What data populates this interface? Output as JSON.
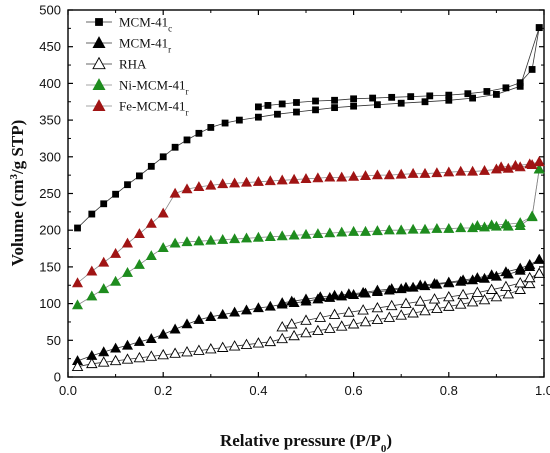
{
  "chart_data": {
    "type": "line",
    "xlabel": "Relative pressure (P/P",
    "xlabel_sub": "0",
    "xlabel_end": ")",
    "ylabel": "Volume (cm",
    "ylabel_sup": "3",
    "ylabel_end": "/g STP)",
    "xlim": [
      0.0,
      1.0
    ],
    "ylim": [
      0,
      500
    ],
    "xticks": [
      "0.0",
      "0.2",
      "0.4",
      "0.6",
      "0.8",
      "1.0"
    ],
    "yticks": [
      "0",
      "50",
      "100",
      "150",
      "200",
      "250",
      "300",
      "350",
      "400",
      "450",
      "500"
    ],
    "legend_position": "top-left",
    "series": [
      {
        "name": "MCM-41",
        "subscript": "c",
        "marker": "square",
        "filled": true,
        "color": "#000000",
        "adsorption": [
          [
            0.02,
            203
          ],
          [
            0.05,
            222
          ],
          [
            0.075,
            236
          ],
          [
            0.1,
            249
          ],
          [
            0.125,
            262
          ],
          [
            0.15,
            274
          ],
          [
            0.175,
            287
          ],
          [
            0.2,
            300
          ],
          [
            0.225,
            313
          ],
          [
            0.25,
            323
          ],
          [
            0.275,
            332
          ],
          [
            0.3,
            340
          ],
          [
            0.33,
            346
          ],
          [
            0.36,
            350
          ],
          [
            0.4,
            354
          ],
          [
            0.44,
            358
          ],
          [
            0.48,
            361
          ],
          [
            0.52,
            364
          ],
          [
            0.56,
            367
          ],
          [
            0.6,
            369
          ],
          [
            0.65,
            371
          ],
          [
            0.7,
            373
          ],
          [
            0.75,
            375
          ],
          [
            0.8,
            377
          ],
          [
            0.85,
            380
          ],
          [
            0.9,
            385
          ],
          [
            0.95,
            396
          ],
          [
            0.99,
            476
          ]
        ],
        "desorption": [
          [
            0.99,
            476
          ],
          [
            0.975,
            419
          ],
          [
            0.95,
            401
          ],
          [
            0.92,
            394
          ],
          [
            0.88,
            389
          ],
          [
            0.84,
            386
          ],
          [
            0.8,
            384
          ],
          [
            0.76,
            383
          ],
          [
            0.72,
            382
          ],
          [
            0.68,
            381
          ],
          [
            0.64,
            380
          ],
          [
            0.6,
            379
          ],
          [
            0.56,
            377
          ],
          [
            0.52,
            376
          ],
          [
            0.48,
            374
          ],
          [
            0.45,
            372
          ],
          [
            0.42,
            370
          ],
          [
            0.4,
            368
          ]
        ]
      },
      {
        "name": "MCM-41",
        "subscript": "r",
        "marker": "triangle",
        "filled": true,
        "color": "#000000",
        "adsorption": [
          [
            0.02,
            22
          ],
          [
            0.05,
            29
          ],
          [
            0.075,
            34
          ],
          [
            0.1,
            39
          ],
          [
            0.125,
            43
          ],
          [
            0.15,
            48
          ],
          [
            0.175,
            52
          ],
          [
            0.2,
            58
          ],
          [
            0.225,
            65
          ],
          [
            0.25,
            72
          ],
          [
            0.275,
            78
          ],
          [
            0.3,
            82
          ],
          [
            0.325,
            85
          ],
          [
            0.35,
            88
          ],
          [
            0.375,
            91
          ],
          [
            0.4,
            94
          ],
          [
            0.425,
            96
          ],
          [
            0.45,
            99
          ],
          [
            0.475,
            101
          ],
          [
            0.5,
            103
          ],
          [
            0.525,
            106
          ],
          [
            0.55,
            108
          ],
          [
            0.575,
            110
          ],
          [
            0.6,
            112
          ],
          [
            0.625,
            114
          ],
          [
            0.65,
            116
          ],
          [
            0.675,
            118
          ],
          [
            0.7,
            120
          ],
          [
            0.725,
            122
          ],
          [
            0.75,
            124
          ],
          [
            0.775,
            126
          ],
          [
            0.8,
            128
          ],
          [
            0.825,
            130
          ],
          [
            0.85,
            132
          ],
          [
            0.875,
            134
          ],
          [
            0.9,
            137
          ],
          [
            0.925,
            140
          ],
          [
            0.95,
            145
          ],
          [
            0.97,
            150
          ],
          [
            0.99,
            160
          ]
        ],
        "desorption": [
          [
            0.99,
            160
          ],
          [
            0.97,
            153
          ],
          [
            0.95,
            148
          ],
          [
            0.92,
            143
          ],
          [
            0.89,
            139
          ],
          [
            0.86,
            135
          ],
          [
            0.83,
            132
          ],
          [
            0.8,
            129
          ],
          [
            0.77,
            127
          ],
          [
            0.74,
            125
          ],
          [
            0.71,
            122
          ],
          [
            0.68,
            120
          ],
          [
            0.65,
            118
          ],
          [
            0.62,
            115
          ],
          [
            0.59,
            113
          ],
          [
            0.56,
            111
          ],
          [
            0.53,
            109
          ],
          [
            0.5,
            106
          ],
          [
            0.47,
            103
          ],
          [
            0.45,
            101
          ]
        ]
      },
      {
        "name": "RHA",
        "subscript": "",
        "marker": "triangle",
        "filled": false,
        "color": "#000000",
        "adsorption": [
          [
            0.02,
            14
          ],
          [
            0.05,
            18
          ],
          [
            0.075,
            20
          ],
          [
            0.1,
            22
          ],
          [
            0.125,
            24
          ],
          [
            0.15,
            26
          ],
          [
            0.175,
            28
          ],
          [
            0.2,
            30
          ],
          [
            0.225,
            32
          ],
          [
            0.25,
            34
          ],
          [
            0.275,
            36
          ],
          [
            0.3,
            38
          ],
          [
            0.325,
            40
          ],
          [
            0.35,
            42
          ],
          [
            0.375,
            44
          ],
          [
            0.4,
            46
          ],
          [
            0.425,
            48
          ],
          [
            0.45,
            52
          ],
          [
            0.475,
            56
          ],
          [
            0.5,
            60
          ],
          [
            0.525,
            63
          ],
          [
            0.55,
            66
          ],
          [
            0.575,
            69
          ],
          [
            0.6,
            72
          ],
          [
            0.625,
            75
          ],
          [
            0.65,
            78
          ],
          [
            0.675,
            81
          ],
          [
            0.7,
            84
          ],
          [
            0.725,
            87
          ],
          [
            0.75,
            90
          ],
          [
            0.775,
            93
          ],
          [
            0.8,
            96
          ],
          [
            0.825,
            99
          ],
          [
            0.85,
            102
          ],
          [
            0.875,
            105
          ],
          [
            0.9,
            109
          ],
          [
            0.925,
            113
          ],
          [
            0.95,
            119
          ],
          [
            0.97,
            127
          ],
          [
            0.99,
            141
          ]
        ],
        "desorption": [
          [
            0.99,
            141
          ],
          [
            0.97,
            135
          ],
          [
            0.95,
            128
          ],
          [
            0.92,
            123
          ],
          [
            0.89,
            119
          ],
          [
            0.86,
            115
          ],
          [
            0.83,
            112
          ],
          [
            0.8,
            109
          ],
          [
            0.77,
            106
          ],
          [
            0.74,
            103
          ],
          [
            0.71,
            100
          ],
          [
            0.68,
            97
          ],
          [
            0.65,
            94
          ],
          [
            0.62,
            91
          ],
          [
            0.59,
            88
          ],
          [
            0.56,
            85
          ],
          [
            0.53,
            81
          ],
          [
            0.5,
            77
          ],
          [
            0.47,
            72
          ],
          [
            0.45,
            68
          ]
        ]
      },
      {
        "name": "Ni-MCM-41",
        "subscript": "r",
        "marker": "triangle",
        "filled": true,
        "color": "#1e8c1e",
        "adsorption": [
          [
            0.02,
            98
          ],
          [
            0.05,
            110
          ],
          [
            0.075,
            120
          ],
          [
            0.1,
            130
          ],
          [
            0.125,
            142
          ],
          [
            0.15,
            153
          ],
          [
            0.175,
            165
          ],
          [
            0.2,
            176
          ],
          [
            0.225,
            182
          ],
          [
            0.25,
            184
          ],
          [
            0.275,
            185
          ],
          [
            0.3,
            186
          ],
          [
            0.325,
            187
          ],
          [
            0.35,
            188
          ],
          [
            0.375,
            189
          ],
          [
            0.4,
            190
          ],
          [
            0.425,
            191
          ],
          [
            0.45,
            192
          ],
          [
            0.475,
            193
          ],
          [
            0.5,
            194
          ],
          [
            0.525,
            195
          ],
          [
            0.55,
            196
          ],
          [
            0.575,
            197
          ],
          [
            0.6,
            198
          ],
          [
            0.625,
            198
          ],
          [
            0.65,
            199
          ],
          [
            0.675,
            200
          ],
          [
            0.7,
            200
          ],
          [
            0.725,
            201
          ],
          [
            0.75,
            201
          ],
          [
            0.775,
            202
          ],
          [
            0.8,
            202
          ],
          [
            0.825,
            203
          ],
          [
            0.85,
            203
          ],
          [
            0.875,
            204
          ],
          [
            0.9,
            205
          ],
          [
            0.925,
            205
          ],
          [
            0.95,
            206
          ],
          [
            0.975,
            218
          ],
          [
            0.99,
            283
          ]
        ],
        "desorption": [
          [
            0.99,
            283
          ],
          [
            0.975,
            219
          ],
          [
            0.95,
            210
          ],
          [
            0.92,
            208
          ],
          [
            0.89,
            207
          ],
          [
            0.86,
            206
          ]
        ]
      },
      {
        "name": "Fe-MCM-41",
        "subscript": "r",
        "marker": "triangle",
        "filled": true,
        "color": "#a01414",
        "adsorption": [
          [
            0.02,
            128
          ],
          [
            0.05,
            144
          ],
          [
            0.075,
            156
          ],
          [
            0.1,
            168
          ],
          [
            0.125,
            182
          ],
          [
            0.15,
            195
          ],
          [
            0.175,
            209
          ],
          [
            0.2,
            223
          ],
          [
            0.225,
            250
          ],
          [
            0.25,
            256
          ],
          [
            0.275,
            259
          ],
          [
            0.3,
            261
          ],
          [
            0.325,
            263
          ],
          [
            0.35,
            264
          ],
          [
            0.375,
            265
          ],
          [
            0.4,
            266
          ],
          [
            0.425,
            267
          ],
          [
            0.45,
            268
          ],
          [
            0.475,
            269
          ],
          [
            0.5,
            270
          ],
          [
            0.525,
            271
          ],
          [
            0.55,
            272
          ],
          [
            0.575,
            272
          ],
          [
            0.6,
            273
          ],
          [
            0.625,
            274
          ],
          [
            0.65,
            275
          ],
          [
            0.675,
            275
          ],
          [
            0.7,
            276
          ],
          [
            0.725,
            277
          ],
          [
            0.75,
            277
          ],
          [
            0.775,
            278
          ],
          [
            0.8,
            279
          ],
          [
            0.825,
            280
          ],
          [
            0.85,
            280
          ],
          [
            0.875,
            281
          ],
          [
            0.9,
            283
          ],
          [
            0.925,
            284
          ],
          [
            0.95,
            286
          ],
          [
            0.975,
            289
          ],
          [
            0.99,
            293
          ]
        ],
        "desorption": [
          [
            0.99,
            293
          ],
          [
            0.97,
            290
          ],
          [
            0.94,
            288
          ],
          [
            0.91,
            286
          ]
        ]
      }
    ]
  }
}
